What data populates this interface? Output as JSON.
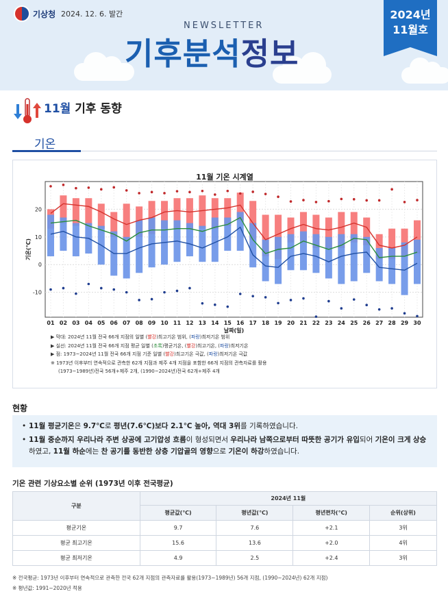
{
  "header": {
    "org": "기상청",
    "pub_date": "2024. 12. 6. 발간",
    "newsletter_label": "NEWSLETTER",
    "title_part1": "기후분석",
    "title_part2": "정보",
    "issue_year": "2024년",
    "issue_month": "11월호"
  },
  "section": {
    "title_highlight": "11월",
    "title_rest": " 기후 동향",
    "tab": "기온"
  },
  "chart_data": {
    "type": "box-line",
    "title": "11월 기온 시계열",
    "xlabel": "날짜(일)",
    "ylabel": "기온(℃)",
    "ylim": [
      -19,
      30
    ],
    "yticks": [
      -10,
      0,
      10,
      20
    ],
    "x": [
      "01",
      "02",
      "03",
      "04",
      "05",
      "06",
      "07",
      "08",
      "09",
      "10",
      "11",
      "12",
      "13",
      "14",
      "15",
      "16",
      "17",
      "18",
      "19",
      "20",
      "21",
      "22",
      "23",
      "24",
      "25",
      "26",
      "27",
      "28",
      "29",
      "30"
    ],
    "series": [
      {
        "name": "최고기온 범위",
        "color": "#f77f7f",
        "low": [
          13,
          15,
          14,
          14,
          13,
          10,
          9,
          10,
          11,
          13,
          13,
          13,
          13,
          13,
          14,
          16,
          9,
          3,
          2,
          8,
          8,
          6,
          6,
          6,
          8,
          7,
          2,
          2,
          3,
          4
        ],
        "high": [
          20,
          25,
          24,
          24,
          22,
          19,
          22,
          21,
          23,
          23,
          24,
          24,
          25,
          24,
          24,
          26,
          23,
          18,
          18,
          17,
          19,
          18,
          17,
          19,
          19,
          17,
          11,
          13,
          13,
          16
        ]
      },
      {
        "name": "최저기온 범위",
        "color": "#6c95e8",
        "low": [
          3,
          5,
          3,
          4,
          0,
          -4,
          -5,
          -3,
          -1,
          0,
          1,
          3,
          1,
          1,
          5,
          5,
          -1,
          -6,
          -7,
          -2,
          -2,
          -3,
          -5,
          -7,
          -6,
          -3,
          -6,
          -7,
          -11,
          -7
        ],
        "high": [
          18,
          17,
          15,
          15,
          14,
          12,
          10,
          16,
          17,
          16,
          16,
          15,
          14,
          17,
          17,
          19,
          15,
          9,
          10,
          11,
          12,
          11,
          10,
          11,
          11,
          10,
          6,
          6,
          8,
          9
        ]
      },
      {
        "name": "평균 최고기온",
        "color": "#d6322c",
        "values": [
          18.5,
          22,
          21.5,
          21,
          19,
          16.5,
          14.5,
          16,
          17,
          19,
          19.5,
          19,
          19.5,
          20,
          20.5,
          21.5,
          15,
          9,
          11,
          13,
          14.5,
          13,
          12.5,
          13.5,
          15,
          13.5,
          7,
          6,
          7,
          10
        ]
      },
      {
        "name": "평균기온",
        "color": "#2a8c3a",
        "values": [
          15,
          15.5,
          16,
          14,
          12.5,
          11,
          8.5,
          11.5,
          12.5,
          12.5,
          13,
          13,
          12,
          13.5,
          14.5,
          17,
          9,
          4,
          5.5,
          6,
          8.5,
          7,
          5.5,
          7,
          9.5,
          9,
          2.5,
          3,
          3,
          4.5
        ]
      },
      {
        "name": "평균 최저기온",
        "color": "#1f4fa3",
        "values": [
          11,
          12,
          10,
          9.5,
          7,
          4,
          4,
          6,
          7.5,
          8,
          8.5,
          7.5,
          6,
          8,
          10,
          13.5,
          3.5,
          -0.5,
          -1,
          3,
          4,
          3,
          1,
          3,
          4,
          4.5,
          -1,
          -1.5,
          -2,
          0.5
        ]
      },
      {
        "name": "극값 최고",
        "color": "#c0282a",
        "values": [
          28.3,
          28.8,
          27.6,
          27.8,
          27.2,
          27.9,
          26.8,
          25.8,
          26.2,
          25.8,
          26.5,
          26.2,
          26.6,
          25.3,
          26.6,
          25.7,
          26.3,
          25.5,
          24.5,
          22.8,
          23.3,
          22.6,
          22.9,
          23.7,
          23.6,
          23.2,
          23.2,
          27.2,
          22.6,
          23.3
        ]
      },
      {
        "name": "극값 최저",
        "color": "#1f3d8f",
        "values": [
          -9,
          -8.5,
          -10.5,
          -7,
          -8.5,
          -9,
          -10,
          -12.8,
          -12.5,
          -10,
          -9.5,
          -8.5,
          -14,
          -14.5,
          -15.2,
          -10.6,
          -11.4,
          -11.8,
          -13.9,
          -12.8,
          -12.2,
          -18.8,
          -13.2,
          -15.8,
          -12.6,
          -14.6,
          -16.2,
          -15.8,
          -17.6,
          -18.6
        ]
      }
    ]
  },
  "notes": {
    "n1_a": "▶ 막대: 2024년 11월 전국 66개 지점의 일별 (",
    "n1_b": "빨강",
    "n1_c": ")최고기온 범위, (",
    "n1_d": "파랑",
    "n1_e": ")최저기온 범위",
    "n2_a": "▶ 실선: 2024년 11월 전국 66개 지점 평균 일별 (",
    "n2_b": "초록",
    "n2_c": ")평균기온, (",
    "n2_d": "빨강",
    "n2_e": ")최고기온, (",
    "n2_f": "파랑",
    "n2_g": ")최저기온",
    "n3_a": "▶ 점: 1973~2024년 11월 전국 66개 지점 기준 일별 (",
    "n3_b": "빨강",
    "n3_c": ")최고기온 극값, (",
    "n3_d": "파랑",
    "n3_e": ")최저기온 극값",
    "n4": "※ 1973년 이후부터 연속적으로 관측한 62개 지점과 제주 4개 지점을 포함한 66개 지점의 관측자료를 활용",
    "n5": "(1973~1989년)전국 56개+제주 2개, (1990~2024년)전국 62개+제주 4개"
  },
  "status": {
    "heading": "현황",
    "p1_a": "11월 평균기온",
    "p1_b": "은 ",
    "p1_c": "9.7℃",
    "p1_d": "로 ",
    "p1_e": "평년(7.6℃)보다 2.1℃ 높아, 역대 3위",
    "p1_f": "를 기록하였습니다.",
    "p2_a": "11월 중순까지 우리나라 주변 상공에 고기압성 흐름",
    "p2_b": "이 형성되면서 ",
    "p2_c": "우리나라 남쪽으로부터 따뜻한 공기가 유입",
    "p2_d": "되어 ",
    "p2_e": "기온이 크게",
    "p2_f": "상승",
    "p2_g": "하였고, ",
    "p2_h": "11월 하순",
    "p2_i": "에는 ",
    "p2_j": "찬 공기를 동반한 상층 기압골의 영향",
    "p2_k": "으로 ",
    "p2_l": "기온이 하강",
    "p2_m": "하였습니다."
  },
  "table": {
    "heading": "기온 관련 기상요소별 순위 (1973년 이후 전국평균)",
    "col_group": "구분",
    "period": "2024년 11월",
    "headers": [
      "평균값(℃)",
      "평년값(℃)",
      "평년편차(℃)",
      "순위(상위)"
    ],
    "rows": [
      {
        "name": "평균기온",
        "avg": "9.7",
        "normal": "7.6",
        "diff": "+2.1",
        "rank": "3위"
      },
      {
        "name": "평균 최고기온",
        "avg": "15.6",
        "normal": "13.6",
        "diff": "+2.0",
        "rank": "4위"
      },
      {
        "name": "평균 최저기온",
        "avg": "4.9",
        "normal": "2.5",
        "diff": "+2.4",
        "rank": "3위"
      }
    ]
  },
  "footnotes": {
    "f1": "※ 전국평균: 1973년 이후부터 연속적으로 관측한 전국 62개 지점의 관측자료를 활용(1973~1989년) 56개 지점, (1990~2024년) 62개 지점)",
    "f2": "※ 평년값: 1991~2020년 적용"
  }
}
